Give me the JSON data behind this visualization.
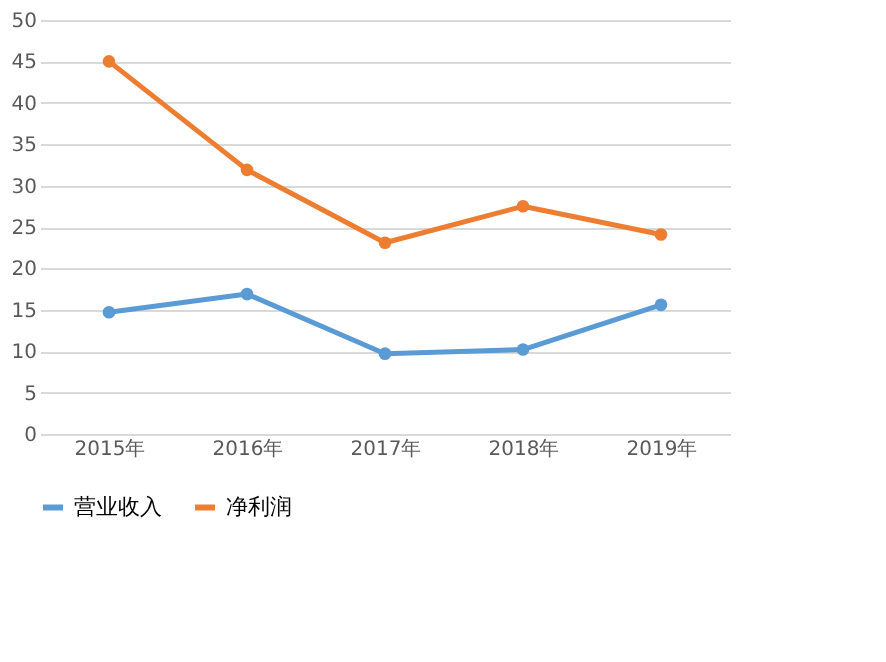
{
  "chart_data": {
    "type": "line",
    "categories": [
      "2015年",
      "2016年",
      "2017年",
      "2018年",
      "2019年"
    ],
    "series": [
      {
        "name": "营业收入",
        "color": "#5b9bd5",
        "values": [
          14.7,
          16.9,
          9.7,
          10.2,
          15.6
        ]
      },
      {
        "name": "净利润",
        "color": "#ed7d31",
        "values": [
          45,
          31.9,
          23.1,
          27.5,
          24.1
        ]
      }
    ],
    "ylim": [
      0,
      50
    ],
    "yticks": [
      0,
      5,
      10,
      15,
      20,
      25,
      30,
      35,
      40,
      45,
      50
    ],
    "grid": "y",
    "legend": "bottom",
    "marker": "circle",
    "line_style": "solid"
  }
}
